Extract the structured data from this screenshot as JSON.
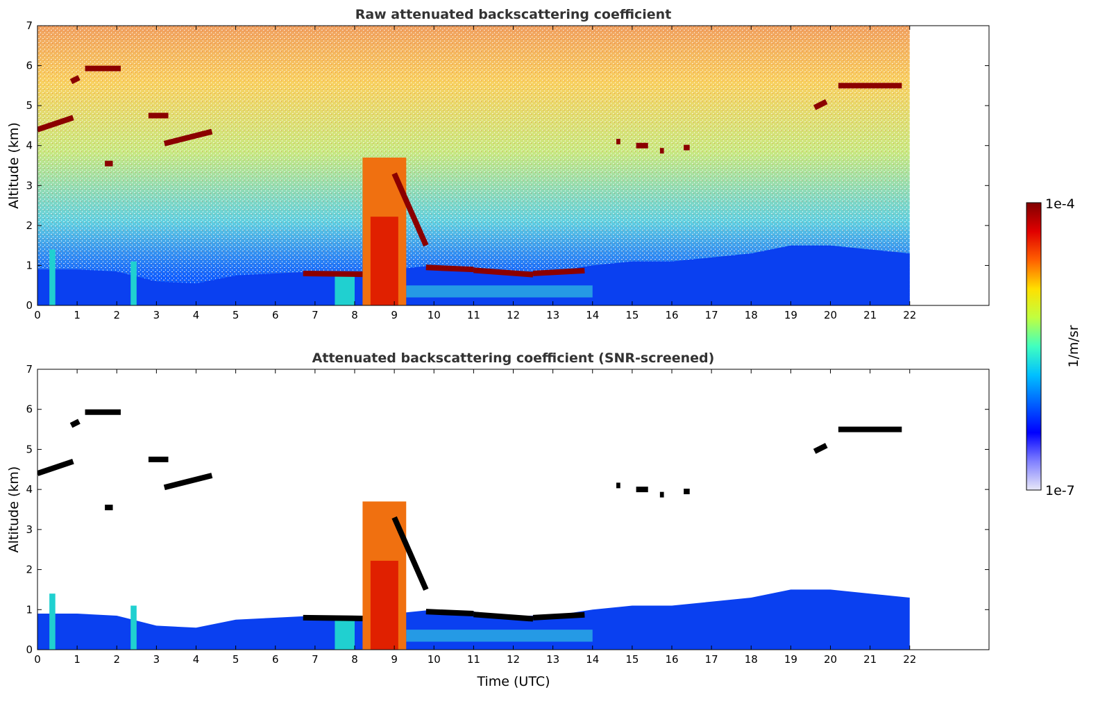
{
  "chart_data": [
    {
      "type": "heatmap",
      "title": "Raw attenuated backscattering coefficient",
      "xlabel": "",
      "ylabel": "Altitude (km)",
      "xlim": [
        0,
        24
      ],
      "ylim": [
        0,
        7
      ],
      "xticks": [
        "0",
        "1",
        "2",
        "3",
        "4",
        "5",
        "6",
        "7",
        "8",
        "9",
        "10",
        "11",
        "12",
        "13",
        "14",
        "15",
        "16",
        "17",
        "18",
        "19",
        "20",
        "21",
        "22"
      ],
      "yticks": [
        "0",
        "1",
        "2",
        "3",
        "4",
        "5",
        "6",
        "7"
      ],
      "data_end_time": 22,
      "background": "noisy",
      "screened": false
    },
    {
      "type": "heatmap",
      "title": "Attenuated backscattering coefficient (SNR-screened)",
      "xlabel": "Time (UTC)",
      "ylabel": "Altitude (km)",
      "xlim": [
        0,
        24
      ],
      "ylim": [
        0,
        7
      ],
      "xticks": [
        "0",
        "1",
        "2",
        "3",
        "4",
        "5",
        "6",
        "7",
        "8",
        "9",
        "10",
        "11",
        "12",
        "13",
        "14",
        "15",
        "16",
        "17",
        "18",
        "19",
        "20",
        "21",
        "22"
      ],
      "yticks": [
        "0",
        "1",
        "2",
        "3",
        "4",
        "5",
        "6",
        "7"
      ],
      "data_end_time": 22,
      "background": "screened",
      "screened": true
    }
  ],
  "features": {
    "cloud_layers": [
      {
        "t0": 0,
        "t1": 0.9,
        "a0": 4.4,
        "a1": 4.7
      },
      {
        "t0": 0.85,
        "t1": 1.05,
        "a0": 5.6,
        "a1": 5.7
      },
      {
        "t0": 1.2,
        "t1": 2.1,
        "a0": 5.93,
        "a1": 5.93
      },
      {
        "t0": 2.8,
        "t1": 3.3,
        "a0": 4.75,
        "a1": 4.75
      },
      {
        "t0": 3.2,
        "t1": 4.4,
        "a0": 4.05,
        "a1": 4.35
      },
      {
        "t0": 1.7,
        "t1": 1.9,
        "a0": 3.55,
        "a1": 3.55
      },
      {
        "t0": 6.7,
        "t1": 8.2,
        "a0": 0.8,
        "a1": 0.78
      },
      {
        "t0": 9.8,
        "t1": 11,
        "a0": 0.95,
        "a1": 0.9
      },
      {
        "t0": 11,
        "t1": 12.5,
        "a0": 0.88,
        "a1": 0.77
      },
      {
        "t0": 12.5,
        "t1": 13.8,
        "a0": 0.8,
        "a1": 0.87
      },
      {
        "t0": 9.0,
        "t1": 9.8,
        "a0": 3.3,
        "a1": 1.5
      },
      {
        "t0": 14.6,
        "t1": 14.7,
        "a0": 4.1,
        "a1": 4.1
      },
      {
        "t0": 15.1,
        "t1": 15.4,
        "a0": 4.0,
        "a1": 4.0
      },
      {
        "t0": 15.7,
        "t1": 15.8,
        "a0": 3.87,
        "a1": 3.87
      },
      {
        "t0": 16.3,
        "t1": 16.45,
        "a0": 3.95,
        "a1": 3.95
      },
      {
        "t0": 19.6,
        "t1": 19.9,
        "a0": 4.95,
        "a1": 5.1
      },
      {
        "t0": 20.2,
        "t1": 21.8,
        "a0": 5.5,
        "a1": 5.5
      }
    ],
    "plumes": [
      {
        "t0": 7.5,
        "t1": 8.0,
        "top": 0.8
      },
      {
        "t0": 8.2,
        "t1": 9.3,
        "top": 3.7
      },
      {
        "t0": 0.3,
        "t1": 0.45,
        "top": 1.4
      },
      {
        "t0": 2.35,
        "t1": 2.5,
        "top": 1.1
      }
    ],
    "boundary_layer": {
      "t": [
        0,
        1,
        2,
        3,
        4,
        5,
        6,
        7,
        8,
        9,
        10,
        11,
        12,
        13,
        14,
        15,
        16,
        17,
        18,
        19,
        20,
        21,
        22
      ],
      "h": [
        0.9,
        0.9,
        0.85,
        0.6,
        0.55,
        0.75,
        0.8,
        0.85,
        0.8,
        0.9,
        1.0,
        0.95,
        0.85,
        0.85,
        1.0,
        1.1,
        1.1,
        1.2,
        1.3,
        1.5,
        1.5,
        1.4,
        1.3
      ]
    }
  },
  "colorbar": {
    "label": "1/m/sr",
    "max_label": "1e-4",
    "min_label": "1e-7",
    "colors": [
      "#e8e8f8",
      "#8080ff",
      "#0000ff",
      "#0060ff",
      "#00c0ff",
      "#40ffc0",
      "#c0ff40",
      "#ffe000",
      "#ff6000",
      "#e00000",
      "#800000"
    ]
  }
}
